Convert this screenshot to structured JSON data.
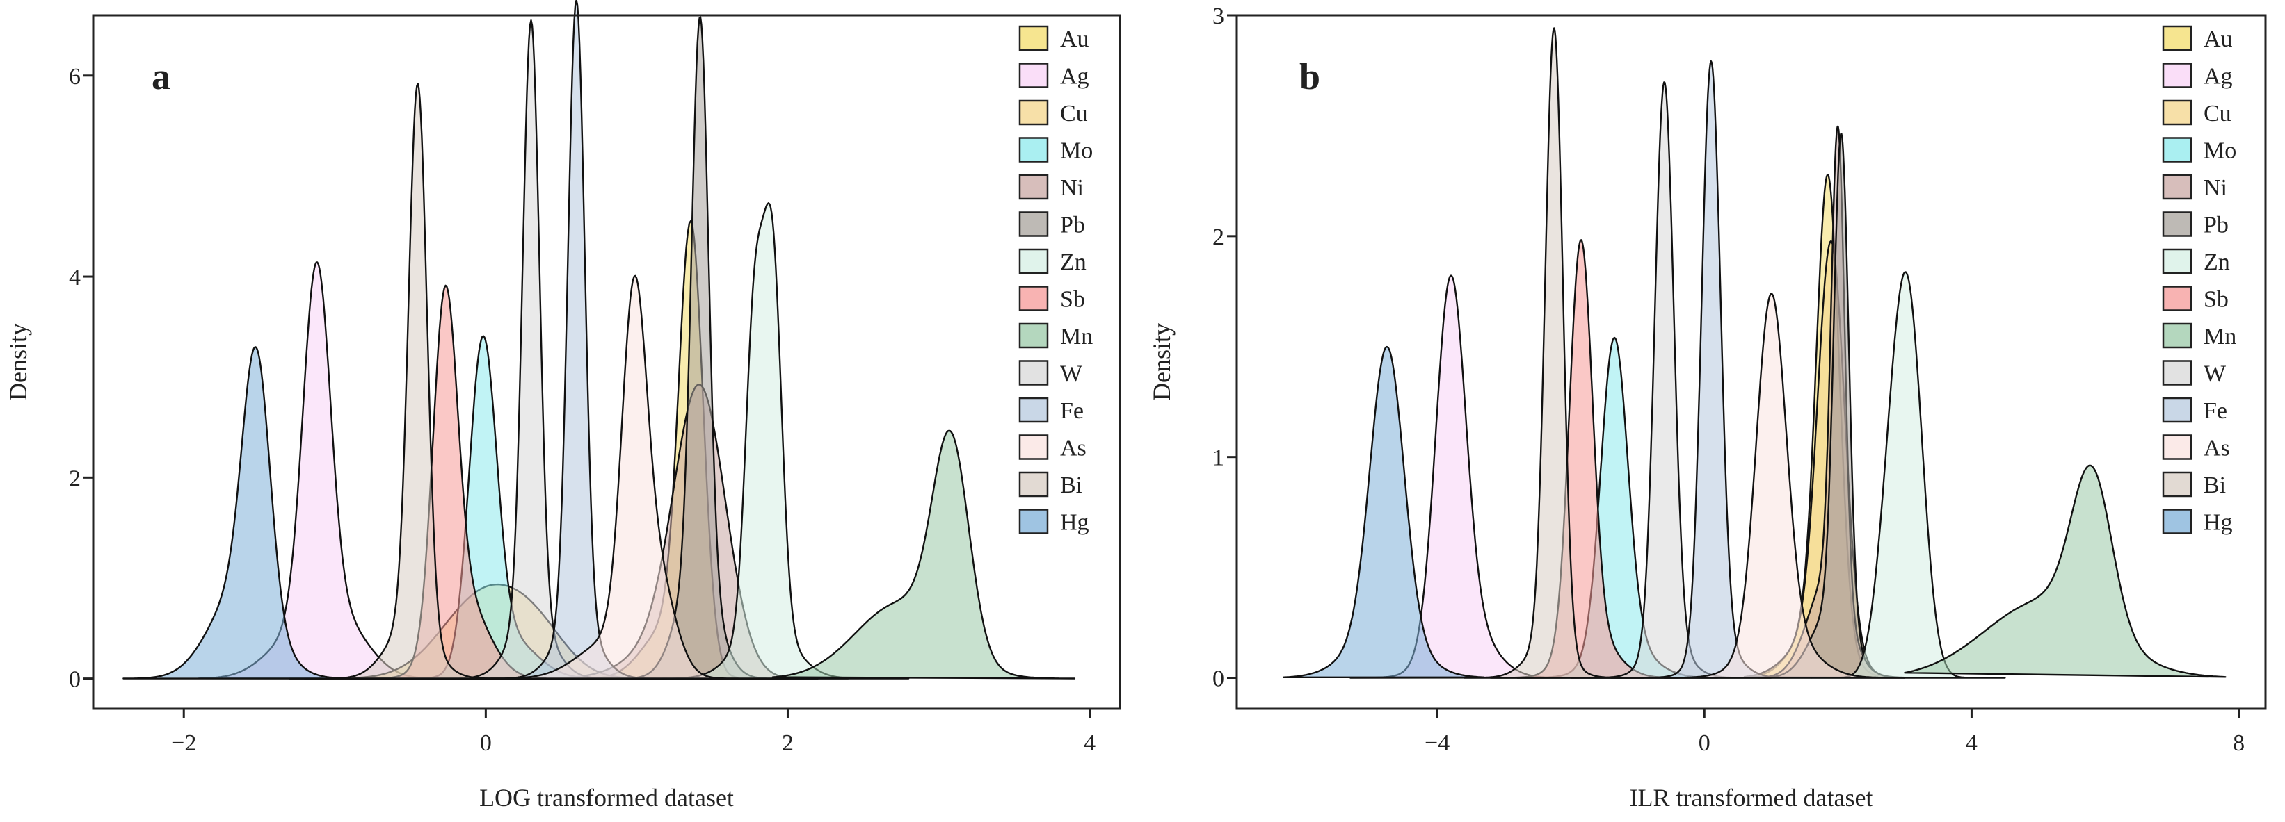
{
  "chart_data": [
    {
      "panel_label": "a",
      "type": "area",
      "subtype": "kernel-density",
      "xlabel": "LOG transformed dataset",
      "ylabel": "Density",
      "xlim": [
        -2.6,
        4.2
      ],
      "ylim": [
        -0.3,
        6.6
      ],
      "xticks": [
        -2,
        0,
        2,
        4
      ],
      "yticks": [
        0,
        2,
        4,
        6
      ],
      "tick_labels_x": [
        "−2",
        "0",
        "2",
        "4"
      ],
      "tick_labels_y": [
        "0",
        "2",
        "4",
        "6"
      ],
      "legend_position": "top-right",
      "series": [
        {
          "name": "Au",
          "color": "#f3dc6b",
          "peaks": [
            {
              "mu": 1.36,
              "sigma": 0.08,
              "h": 4.25
            },
            {
              "mu": 1.2,
              "sigma": 0.16,
              "h": 0.5
            }
          ],
          "range": [
            -0.5,
            2.2
          ]
        },
        {
          "name": "Ag",
          "color": "#f8d3f5",
          "peaks": [
            {
              "mu": -1.12,
              "sigma": 0.09,
              "h": 3.5
            },
            {
              "mu": -1.25,
              "sigma": 0.2,
              "h": 0.4
            },
            {
              "mu": -0.95,
              "sigma": 0.18,
              "h": 0.5
            }
          ],
          "range": [
            -1.9,
            -0.2
          ]
        },
        {
          "name": "Cu",
          "color": "#f4d58b",
          "peaks": [
            {
              "mu": 0.0,
              "sigma": 0.28,
              "h": 0.85
            },
            {
              "mu": 0.35,
              "sigma": 0.2,
              "h": 0.3
            }
          ],
          "range": [
            -1.2,
            1.6
          ]
        },
        {
          "name": "Mo",
          "color": "#8ee9ec",
          "peaks": [
            {
              "mu": -0.02,
              "sigma": 0.09,
              "h": 3.15
            },
            {
              "mu": 0.15,
              "sigma": 0.18,
              "h": 0.4
            }
          ],
          "range": [
            -0.9,
            1.0
          ]
        },
        {
          "name": "Ni",
          "color": "#c9a8a4",
          "peaks": [
            {
              "mu": 1.42,
              "sigma": 0.17,
              "h": 2.72
            },
            {
              "mu": 1.2,
              "sigma": 0.25,
              "h": 0.3
            }
          ],
          "range": [
            0.3,
            2.4
          ]
        },
        {
          "name": "Pb",
          "color": "#a8a39c",
          "peaks": [
            {
              "mu": 1.42,
              "sigma": 0.055,
              "h": 5.5
            },
            {
              "mu": 1.4,
              "sigma": 0.13,
              "h": 1.1
            }
          ],
          "range": [
            0.5,
            2.2
          ]
        },
        {
          "name": "Zn",
          "color": "#d6efe4",
          "peaks": [
            {
              "mu": 1.9,
              "sigma": 0.06,
              "h": 3.6
            },
            {
              "mu": 1.78,
              "sigma": 0.06,
              "h": 3.1
            },
            {
              "mu": 1.85,
              "sigma": 0.18,
              "h": 0.55
            }
          ],
          "range": [
            1.0,
            2.8
          ]
        },
        {
          "name": "Sb",
          "color": "#f59a98",
          "peaks": [
            {
              "mu": -0.27,
              "sigma": 0.08,
              "h": 3.3
            },
            {
              "mu": -0.15,
              "sigma": 0.16,
              "h": 0.8
            }
          ],
          "range": [
            -1.3,
            0.8
          ]
        },
        {
          "name": "Mn",
          "color": "#9bc9a8",
          "peaks": [
            {
              "mu": 3.08,
              "sigma": 0.12,
              "h": 2.05
            },
            {
              "mu": 2.75,
              "sigma": 0.3,
              "h": 0.75
            }
          ],
          "range": [
            1.9,
            3.9
          ]
        },
        {
          "name": "W",
          "color": "#d8d8d8",
          "peaks": [
            {
              "mu": 0.3,
              "sigma": 0.055,
              "h": 5.95
            },
            {
              "mu": 0.3,
              "sigma": 0.14,
              "h": 0.6
            }
          ],
          "range": [
            -0.6,
            1.2
          ]
        },
        {
          "name": "Fe",
          "color": "#b7c9df",
          "peaks": [
            {
              "mu": 0.6,
              "sigma": 0.055,
              "h": 6.2
            },
            {
              "mu": 0.6,
              "sigma": 0.14,
              "h": 0.55
            }
          ],
          "range": [
            -0.3,
            1.5
          ]
        },
        {
          "name": "As",
          "color": "#fae3e0",
          "peaks": [
            {
              "mu": 0.98,
              "sigma": 0.08,
              "h": 3.15
            },
            {
              "mu": 1.12,
              "sigma": 0.12,
              "h": 1.0
            },
            {
              "mu": 0.85,
              "sigma": 0.22,
              "h": 0.4
            }
          ],
          "range": [
            -0.1,
            2.0
          ]
        },
        {
          "name": "Bi",
          "color": "#d8cec4",
          "peaks": [
            {
              "mu": -0.45,
              "sigma": 0.06,
              "h": 5.4
            },
            {
              "mu": -0.5,
              "sigma": 0.15,
              "h": 0.55
            }
          ],
          "range": [
            -1.3,
            0.4
          ]
        },
        {
          "name": "Hg",
          "color": "#7fb0d8",
          "peaks": [
            {
              "mu": -1.52,
              "sigma": 0.09,
              "h": 2.5
            },
            {
              "mu": -1.62,
              "sigma": 0.2,
              "h": 0.9
            }
          ],
          "range": [
            -2.4,
            -0.6
          ]
        }
      ]
    },
    {
      "panel_label": "b",
      "type": "area",
      "subtype": "kernel-density",
      "xlabel": "ILR transformed dataset",
      "ylabel": "Density",
      "xlim": [
        -7.0,
        8.4
      ],
      "ylim": [
        -0.14,
        3.0
      ],
      "xticks": [
        -4,
        0,
        4,
        8
      ],
      "yticks": [
        0,
        1,
        2,
        3
      ],
      "tick_labels_x": [
        "−4",
        "0",
        "4",
        "8"
      ],
      "tick_labels_y": [
        "0",
        "1",
        "2",
        "3"
      ],
      "legend_position": "top-right",
      "series": [
        {
          "name": "Au",
          "color": "#f3dc6b",
          "peaks": [
            {
              "mu": 1.85,
              "sigma": 0.17,
              "h": 2.05
            },
            {
              "mu": 1.7,
              "sigma": 0.35,
              "h": 0.25
            }
          ],
          "range": [
            0.6,
            3.0
          ]
        },
        {
          "name": "Ag",
          "color": "#f8d3f5",
          "peaks": [
            {
              "mu": -3.8,
              "sigma": 0.22,
              "h": 1.6
            },
            {
              "mu": -3.6,
              "sigma": 0.4,
              "h": 0.25
            }
          ],
          "range": [
            -5.3,
            -2.2
          ]
        },
        {
          "name": "Cu",
          "color": "#f4d58b",
          "peaks": [
            {
              "mu": 1.9,
              "sigma": 0.2,
              "h": 1.8
            },
            {
              "mu": 1.7,
              "sigma": 0.4,
              "h": 0.2
            }
          ],
          "range": [
            0.6,
            3.0
          ]
        },
        {
          "name": "Mo",
          "color": "#8ee9ec",
          "peaks": [
            {
              "mu": -1.35,
              "sigma": 0.2,
              "h": 1.4
            },
            {
              "mu": -1.2,
              "sigma": 0.4,
              "h": 0.15
            }
          ],
          "range": [
            -2.8,
            0.2
          ]
        },
        {
          "name": "Ni",
          "color": "#c9a8a4",
          "peaks": [
            {
              "mu": 2.0,
              "sigma": 0.1,
              "h": 2.1
            },
            {
              "mu": 1.85,
              "sigma": 0.3,
              "h": 0.45
            }
          ],
          "range": [
            0.8,
            3.0
          ]
        },
        {
          "name": "Pb",
          "color": "#a8a39c",
          "peaks": [
            {
              "mu": 2.05,
              "sigma": 0.11,
              "h": 2.2
            },
            {
              "mu": 1.9,
              "sigma": 0.3,
              "h": 0.3
            }
          ],
          "range": [
            0.8,
            3.0
          ]
        },
        {
          "name": "Zn",
          "color": "#d6efe4",
          "peaks": [
            {
              "mu": 3.05,
              "sigma": 0.22,
              "h": 1.65
            },
            {
              "mu": 2.75,
              "sigma": 0.2,
              "h": 0.5
            }
          ],
          "range": [
            1.6,
            4.5
          ]
        },
        {
          "name": "Sb",
          "color": "#f59a98",
          "peaks": [
            {
              "mu": -1.85,
              "sigma": 0.17,
              "h": 1.8
            },
            {
              "mu": -1.7,
              "sigma": 0.35,
              "h": 0.2
            }
          ],
          "range": [
            -3.2,
            -0.4
          ]
        },
        {
          "name": "Mn",
          "color": "#9bc9a8",
          "peaks": [
            {
              "mu": 5.8,
              "sigma": 0.3,
              "h": 0.7
            },
            {
              "mu": 5.1,
              "sigma": 0.9,
              "h": 0.35
            }
          ],
          "range": [
            3.0,
            7.8
          ]
        },
        {
          "name": "W",
          "color": "#d8d8d8",
          "peaks": [
            {
              "mu": -0.6,
              "sigma": 0.14,
              "h": 2.55
            },
            {
              "mu": -0.55,
              "sigma": 0.3,
              "h": 0.15
            }
          ],
          "range": [
            -2.0,
            1.0
          ]
        },
        {
          "name": "Fe",
          "color": "#b7c9df",
          "peaks": [
            {
              "mu": 0.1,
              "sigma": 0.14,
              "h": 2.65
            },
            {
              "mu": 0.2,
              "sigma": 0.3,
              "h": 0.15
            }
          ],
          "range": [
            -1.4,
            1.6
          ]
        },
        {
          "name": "As",
          "color": "#fae3e0",
          "peaks": [
            {
              "mu": 1.0,
              "sigma": 0.22,
              "h": 1.55
            },
            {
              "mu": 1.15,
              "sigma": 0.45,
              "h": 0.2
            }
          ],
          "range": [
            -0.6,
            2.6
          ]
        },
        {
          "name": "Bi",
          "color": "#d8cec4",
          "peaks": [
            {
              "mu": -2.25,
              "sigma": 0.13,
              "h": 2.8
            },
            {
              "mu": -2.35,
              "sigma": 0.3,
              "h": 0.15
            }
          ],
          "range": [
            -3.6,
            -0.9
          ]
        },
        {
          "name": "Hg",
          "color": "#7fb0d8",
          "peaks": [
            {
              "mu": -4.75,
              "sigma": 0.25,
              "h": 1.3
            },
            {
              "mu": -4.8,
              "sigma": 0.5,
              "h": 0.2
            }
          ],
          "range": [
            -6.3,
            -3.3
          ]
        }
      ]
    }
  ]
}
